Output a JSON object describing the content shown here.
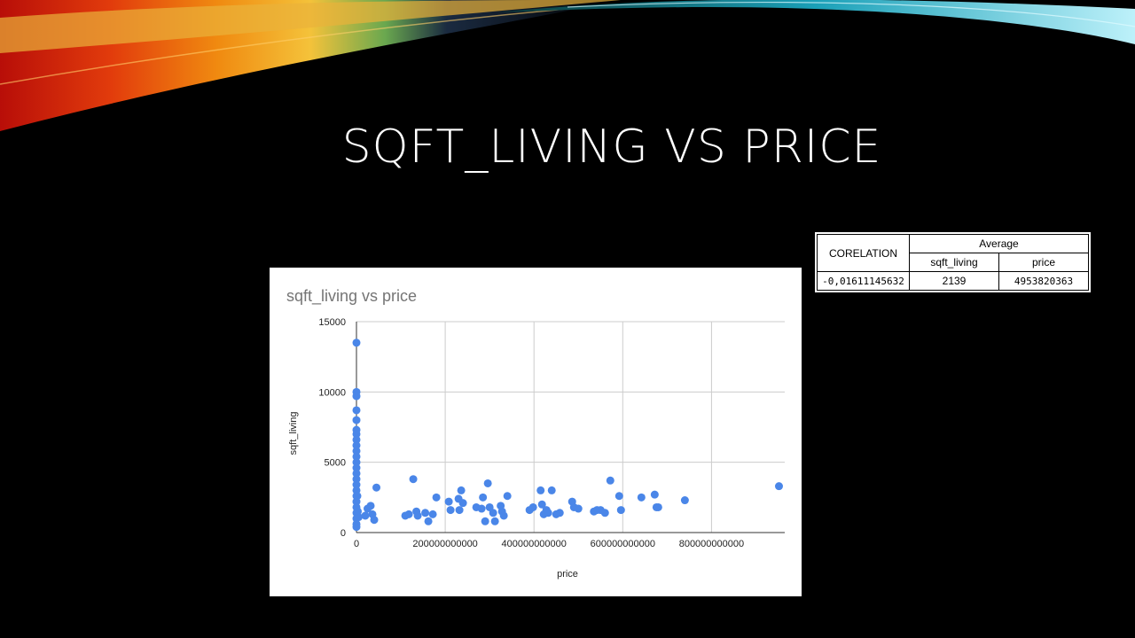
{
  "slide": {
    "title": "SQFT_LIVING VS PRICE"
  },
  "table": {
    "col1_header": "CORELATION",
    "group_header": "Average",
    "sub_headers": [
      "sqft_living",
      "price"
    ],
    "values": [
      "-0,01611145632",
      "2139",
      "4953820363"
    ]
  },
  "colors": {
    "point": "#4a86e8",
    "grid": "#cccccc",
    "background": "#000000"
  },
  "chart_data": {
    "type": "scatter",
    "title": "sqft_living vs price",
    "xlabel": "price",
    "ylabel": "sqft_living",
    "xlim": [
      0,
      965000000000
    ],
    "ylim": [
      0,
      15000
    ],
    "xticks": [
      0,
      200000000000,
      400000000000,
      600000000000,
      800000000000
    ],
    "xtick_labels": [
      "0",
      "200000000000",
      "400000000000",
      "600000000000",
      "800000000000"
    ],
    "yticks": [
      0,
      5000,
      10000,
      15000
    ],
    "ytick_labels": [
      "0",
      "5000",
      "10000",
      "15000"
    ],
    "grid": true,
    "legend": "none",
    "points": [
      [
        0,
        13500
      ],
      [
        0,
        10000
      ],
      [
        0,
        9700
      ],
      [
        0,
        8700
      ],
      [
        0,
        8000
      ],
      [
        0,
        7300
      ],
      [
        0,
        7000
      ],
      [
        0,
        6600
      ],
      [
        0,
        6200
      ],
      [
        0,
        5800
      ],
      [
        0,
        5400
      ],
      [
        0,
        5000
      ],
      [
        0,
        4600
      ],
      [
        0,
        4200
      ],
      [
        0,
        3800
      ],
      [
        0,
        3400
      ],
      [
        0,
        3000
      ],
      [
        0,
        2600
      ],
      [
        0,
        2200
      ],
      [
        0,
        1800
      ],
      [
        0,
        1400
      ],
      [
        0,
        1000
      ],
      [
        0,
        600
      ],
      [
        0,
        400
      ],
      [
        2000000000,
        2600
      ],
      [
        3000000000,
        1500
      ],
      [
        5000000000,
        1100
      ],
      [
        20000000000,
        1200
      ],
      [
        25000000000,
        1700
      ],
      [
        32000000000,
        1900
      ],
      [
        36000000000,
        1300
      ],
      [
        40000000000,
        900
      ],
      [
        45000000000,
        3200
      ],
      [
        110000000000,
        1200
      ],
      [
        118000000000,
        1300
      ],
      [
        128000000000,
        3800
      ],
      [
        135000000000,
        1500
      ],
      [
        138000000000,
        1200
      ],
      [
        155000000000,
        1400
      ],
      [
        162000000000,
        800
      ],
      [
        172000000000,
        1300
      ],
      [
        180000000000,
        2500
      ],
      [
        208000000000,
        2200
      ],
      [
        212000000000,
        1600
      ],
      [
        230000000000,
        2400
      ],
      [
        232000000000,
        1600
      ],
      [
        236000000000,
        3000
      ],
      [
        240000000000,
        2100
      ],
      [
        270000000000,
        1800
      ],
      [
        282000000000,
        1700
      ],
      [
        285000000000,
        2500
      ],
      [
        290000000000,
        800
      ],
      [
        296000000000,
        3500
      ],
      [
        300000000000,
        1800
      ],
      [
        308000000000,
        1400
      ],
      [
        312000000000,
        800
      ],
      [
        325000000000,
        1900
      ],
      [
        328000000000,
        1500
      ],
      [
        332000000000,
        1200
      ],
      [
        340000000000,
        2600
      ],
      [
        390000000000,
        1600
      ],
      [
        398000000000,
        1800
      ],
      [
        415000000000,
        3000
      ],
      [
        418000000000,
        2000
      ],
      [
        422000000000,
        1300
      ],
      [
        428000000000,
        1600
      ],
      [
        432000000000,
        1400
      ],
      [
        440000000000,
        3000
      ],
      [
        450000000000,
        1300
      ],
      [
        458000000000,
        1400
      ],
      [
        486000000000,
        2200
      ],
      [
        490000000000,
        1800
      ],
      [
        500000000000,
        1700
      ],
      [
        535000000000,
        1500
      ],
      [
        542000000000,
        1600
      ],
      [
        550000000000,
        1600
      ],
      [
        560000000000,
        1400
      ],
      [
        572000000000,
        3700
      ],
      [
        592000000000,
        2600
      ],
      [
        596000000000,
        1600
      ],
      [
        642000000000,
        2500
      ],
      [
        672000000000,
        2700
      ],
      [
        676000000000,
        1800
      ],
      [
        680000000000,
        1800
      ],
      [
        740000000000,
        2300
      ],
      [
        952000000000,
        3300
      ]
    ]
  }
}
